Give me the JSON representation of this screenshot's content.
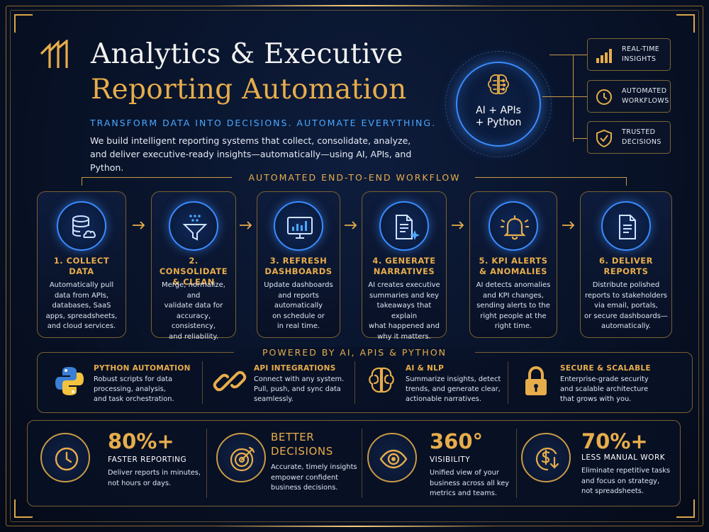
{
  "header": {
    "title_line1": "Analytics & Executive",
    "title_line2": "Reporting Automation",
    "tagline": "TRANSFORM DATA INTO DECISIONS. AUTOMATE EVERYTHING.",
    "intro_line1": "We build intelligent reporting systems that collect, consolidate, analyze,",
    "intro_line2": "and deliver executive-ready insights—automatically—using AI, APIs, and Python."
  },
  "hub": {
    "line1": "AI + APIs",
    "line2": "+ Python",
    "icon": "brain-circuit-icon"
  },
  "features": [
    {
      "line1": "REAL-TIME",
      "line2": "INSIGHTS",
      "icon": "bar-chart-icon"
    },
    {
      "line1": "AUTOMATED",
      "line2": "WORKFLOWS",
      "icon": "clock-icon"
    },
    {
      "line1": "TRUSTED",
      "line2": "DECISIONS",
      "icon": "shield-check-icon"
    }
  ],
  "workflow": {
    "title": "AUTOMATED END-TO-END WORKFLOW",
    "steps": [
      {
        "title1": "1. COLLECT",
        "title2": "DATA",
        "d": [
          "Automatically pull",
          "data from APIs,",
          "databases, SaaS",
          "apps, spreadsheets,",
          "and cloud services."
        ],
        "icon": "database-cloud-icon"
      },
      {
        "title1": "2. CONSOLIDATE",
        "title2": "& CLEAN",
        "d": [
          "Merge, normalize, and",
          "validate data for",
          "accuracy, consistency,",
          "and reliability."
        ],
        "icon": "funnel-icon"
      },
      {
        "title1": "3. REFRESH",
        "title2": "DASHBOARDS",
        "d": [
          "Update dashboards",
          "and reports",
          "automatically",
          "on schedule or",
          "in real time."
        ],
        "icon": "dashboard-monitor-icon"
      },
      {
        "title1": "4. GENERATE",
        "title2": "NARRATIVES",
        "d": [
          "AI creates executive",
          "summaries and key",
          "takeaways that explain",
          "what happened and",
          "why it matters."
        ],
        "icon": "document-sparkle-icon"
      },
      {
        "title1": "5. KPI ALERTS",
        "title2": "& ANOMALIES",
        "d": [
          "AI detects anomalies",
          "and KPI changes,",
          "sending alerts to the",
          "right people at the",
          "right time."
        ],
        "icon": "bell-icon"
      },
      {
        "title1": "6. DELIVER",
        "title2": "REPORTS",
        "d": [
          "Distribute polished",
          "reports to stakeholders",
          "via email, portals,",
          "or secure dashboards—",
          "automatically."
        ],
        "icon": "report-document-icon"
      }
    ]
  },
  "powered": {
    "title": "POWERED BY AI, APIS & PYTHON",
    "items": [
      {
        "title": "PYTHON AUTOMATION",
        "d": [
          "Robust scripts for data",
          "processing, analysis,",
          "and task orchestration."
        ],
        "icon": "python-logo-icon"
      },
      {
        "title": "API INTEGRATIONS",
        "d": [
          "Connect with any system.",
          "Pull, push, and sync data",
          "seamlessly."
        ],
        "icon": "chain-link-icon"
      },
      {
        "title": "AI & NLP",
        "d": [
          "Summarize insights, detect",
          "trends, and generate clear,",
          "actionable narratives."
        ],
        "icon": "brain-icon"
      },
      {
        "title": "SECURE & SCALABLE",
        "d": [
          "Enterprise-grade security",
          "and scalable architecture",
          "that grows with you."
        ],
        "icon": "padlock-icon"
      }
    ]
  },
  "stats": [
    {
      "big": "80%+",
      "sub": "FASTER REPORTING",
      "d": [
        "Deliver reports in minutes,",
        "not hours or days."
      ],
      "icon": "clock-icon"
    },
    {
      "mid1": "BETTER",
      "mid2": "DECISIONS",
      "d": [
        "Accurate, timely insights",
        "empower confident",
        "business decisions."
      ],
      "icon": "target-icon"
    },
    {
      "big": "360°",
      "sub": "VISIBILITY",
      "d": [
        "Unified view of your",
        "business across all key",
        "metrics and teams."
      ],
      "icon": "eye-icon"
    },
    {
      "big": "70%+",
      "sub": "LESS MANUAL WORK",
      "d": [
        "Eliminate repetitive tasks",
        "and focus on strategy,",
        "not spreadsheets."
      ],
      "icon": "dollar-down-icon"
    }
  ],
  "colors": {
    "gold": "#e7ad4b",
    "blue": "#3a8cff",
    "background": "#081227"
  }
}
